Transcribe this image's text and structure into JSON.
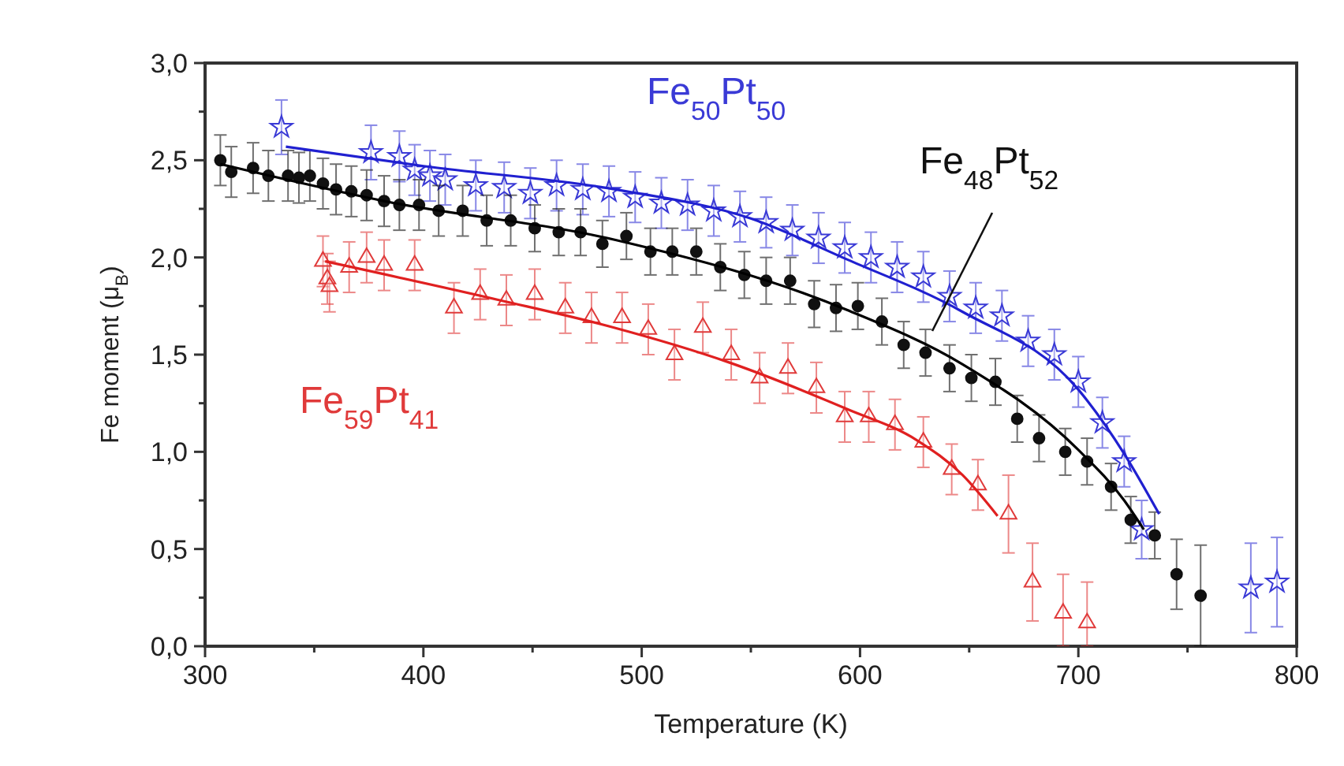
{
  "chart_data": {
    "type": "scatter",
    "xlabel": "Temperature (K)",
    "ylabel": "Fe moment (μ$_{B}$)",
    "xlim": [
      300,
      800
    ],
    "xticks": [
      300,
      {
        "value": 350,
        "label": null
      },
      400,
      {
        "value": 450,
        "label": null
      },
      500,
      {
        "value": 550,
        "label": null
      },
      600,
      {
        "value": 650,
        "label": null
      },
      700,
      {
        "value": 750,
        "label": null
      },
      800
    ],
    "ylim": [
      0,
      3
    ],
    "yticks": [
      {
        "value": 0,
        "label": "0,0"
      },
      {
        "value": 0.25,
        "label": null
      },
      {
        "value": 0.5,
        "label": "0,5"
      },
      {
        "value": 0.75,
        "label": null
      },
      {
        "value": 1,
        "label": "1,0"
      },
      {
        "value": 1.25,
        "label": null
      },
      {
        "value": 1.5,
        "label": "1,5"
      },
      {
        "value": 1.75,
        "label": null
      },
      {
        "value": 2,
        "label": "2,0"
      },
      {
        "value": 2.25,
        "label": null
      },
      {
        "value": 2.5,
        "label": "2,5"
      },
      {
        "value": 2.75,
        "label": null
      },
      {
        "value": 3,
        "label": "3,0"
      }
    ],
    "grid": false,
    "series": [
      {
        "name": "Fe$_{50}$Pt$_{50}$",
        "color": "#3a3ad6",
        "marker": "star",
        "x": [
          335,
          376,
          389,
          396,
          403,
          410,
          424,
          437,
          449,
          461,
          473,
          485,
          497,
          509,
          521,
          533,
          545,
          557,
          569,
          581,
          593,
          605,
          617,
          629,
          641,
          653,
          665,
          677,
          689,
          700,
          711,
          721,
          729,
          779,
          791
        ],
        "values": [
          2.67,
          2.54,
          2.52,
          2.45,
          2.42,
          2.4,
          2.37,
          2.36,
          2.33,
          2.37,
          2.35,
          2.34,
          2.31,
          2.28,
          2.27,
          2.24,
          2.21,
          2.18,
          2.14,
          2.1,
          2.05,
          2.0,
          1.95,
          1.9,
          1.8,
          1.74,
          1.7,
          1.57,
          1.5,
          1.36,
          1.15,
          0.95,
          0.6,
          0.3,
          0.33
        ],
        "errors": [
          0.14,
          0.14,
          0.13,
          0.13,
          0.13,
          0.13,
          0.13,
          0.13,
          0.13,
          0.13,
          0.13,
          0.13,
          0.13,
          0.13,
          0.13,
          0.13,
          0.13,
          0.13,
          0.13,
          0.13,
          0.13,
          0.13,
          0.13,
          0.13,
          0.13,
          0.13,
          0.13,
          0.13,
          0.13,
          0.13,
          0.13,
          0.13,
          0.15,
          0.23,
          0.23
        ]
      },
      {
        "name": "Fe$_{48}$Pt$_{52}$",
        "color": "#111111",
        "marker": "circle",
        "x": [
          307,
          312,
          322,
          329,
          338,
          343,
          348,
          354,
          360,
          367,
          374,
          382,
          389,
          398,
          407,
          418,
          429,
          440,
          451,
          462,
          472,
          482,
          493,
          504,
          514,
          525,
          536,
          547,
          557,
          568,
          579,
          589,
          599,
          610,
          620,
          630,
          641,
          651,
          662,
          672,
          682,
          694,
          704,
          715,
          724,
          735,
          745,
          756
        ],
        "values": [
          2.5,
          2.44,
          2.46,
          2.42,
          2.42,
          2.41,
          2.42,
          2.38,
          2.35,
          2.34,
          2.32,
          2.29,
          2.27,
          2.27,
          2.24,
          2.24,
          2.19,
          2.19,
          2.15,
          2.13,
          2.13,
          2.07,
          2.11,
          2.03,
          2.03,
          2.03,
          1.95,
          1.91,
          1.88,
          1.88,
          1.76,
          1.74,
          1.75,
          1.67,
          1.55,
          1.51,
          1.43,
          1.38,
          1.36,
          1.17,
          1.07,
          1.0,
          0.95,
          0.82,
          0.65,
          0.57,
          0.37,
          0.26
        ],
        "errors": [
          0.13,
          0.13,
          0.13,
          0.13,
          0.13,
          0.13,
          0.13,
          0.13,
          0.13,
          0.13,
          0.13,
          0.13,
          0.13,
          0.13,
          0.13,
          0.13,
          0.13,
          0.13,
          0.12,
          0.12,
          0.12,
          0.12,
          0.12,
          0.12,
          0.12,
          0.12,
          0.12,
          0.12,
          0.12,
          0.12,
          0.12,
          0.12,
          0.12,
          0.12,
          0.12,
          0.12,
          0.12,
          0.12,
          0.12,
          0.12,
          0.12,
          0.12,
          0.12,
          0.12,
          0.12,
          0.12,
          0.18,
          0.26
        ]
      },
      {
        "name": "Fe$_{59}$Pt$_{41}$",
        "color": "#e03a3a",
        "marker": "triangle",
        "x": [
          354,
          356,
          357,
          366,
          374,
          382,
          396,
          414,
          426,
          438,
          451,
          465,
          477,
          491,
          503,
          515,
          528,
          541,
          554,
          567,
          580,
          593,
          604,
          616,
          629,
          642,
          654,
          668,
          679,
          693,
          704
        ],
        "values": [
          1.98,
          1.89,
          1.85,
          1.95,
          2.0,
          1.96,
          1.96,
          1.74,
          1.81,
          1.78,
          1.81,
          1.74,
          1.69,
          1.69,
          1.63,
          1.5,
          1.64,
          1.5,
          1.38,
          1.43,
          1.33,
          1.18,
          1.18,
          1.14,
          1.05,
          0.91,
          0.83,
          0.68,
          0.33,
          0.17,
          0.12
        ],
        "errors": [
          0.13,
          0.13,
          0.13,
          0.13,
          0.13,
          0.13,
          0.13,
          0.13,
          0.13,
          0.13,
          0.13,
          0.13,
          0.13,
          0.13,
          0.13,
          0.13,
          0.13,
          0.13,
          0.13,
          0.13,
          0.13,
          0.13,
          0.13,
          0.13,
          0.13,
          0.13,
          0.13,
          0.2,
          0.2,
          [
            0,
            0.37
          ],
          [
            0,
            0.33
          ]
        ]
      },
      {
        "type": "line",
        "color": "#2020d0",
        "x": [
          337,
          400,
          488,
          550,
          594,
          647,
          700,
          721,
          737
        ],
        "values": [
          2.57,
          2.47,
          2.35,
          2.2,
          1.99,
          1.72,
          1.32,
          0.99,
          0.68
        ]
      },
      {
        "type": "line",
        "color": "#000000",
        "x": [
          307,
          382,
          488,
          594,
          647,
          700,
          721,
          730
        ],
        "values": [
          2.48,
          2.29,
          2.09,
          1.73,
          1.45,
          1.01,
          0.75,
          0.6
        ]
      },
      {
        "type": "line",
        "color": "#e02020",
        "x": [
          355,
          435,
          487,
          540,
          594,
          626,
          647,
          663
        ],
        "values": [
          1.98,
          1.78,
          1.64,
          1.46,
          1.22,
          1.06,
          0.88,
          0.67
        ]
      }
    ]
  }
}
